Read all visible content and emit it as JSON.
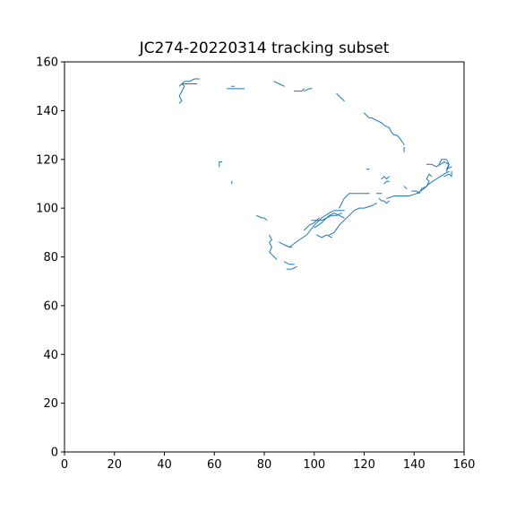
{
  "chart_data": {
    "type": "line",
    "title": "JC274-20220314 tracking subset",
    "xlabel": "",
    "ylabel": "",
    "xlim": [
      0,
      160
    ],
    "ylim": [
      0,
      160
    ],
    "xticks": [
      0,
      20,
      40,
      60,
      80,
      100,
      120,
      140,
      160
    ],
    "yticks": [
      0,
      20,
      40,
      60,
      80,
      100,
      120,
      140,
      160
    ],
    "grid": false,
    "colors": {
      "series": "#1f77b4"
    },
    "series": [
      {
        "x": [
          46,
          47,
          46,
          47,
          48,
          47,
          48,
          50,
          52,
          54
        ],
        "y": [
          143,
          144,
          146,
          148,
          150,
          151,
          152,
          152,
          153,
          153
        ]
      },
      {
        "x": [
          46,
          47,
          49,
          51,
          53
        ],
        "y": [
          150,
          151,
          151,
          151,
          151
        ]
      },
      {
        "x": [
          65,
          67,
          69,
          72
        ],
        "y": [
          149,
          149,
          149,
          149
        ]
      },
      {
        "x": [
          67,
          68
        ],
        "y": [
          150,
          150
        ]
      },
      {
        "x": [
          84,
          86,
          88
        ],
        "y": [
          152,
          151,
          150
        ]
      },
      {
        "x": [
          92,
          95,
          96
        ],
        "y": [
          148,
          148,
          149
        ]
      },
      {
        "x": [
          96,
          98,
          99
        ],
        "y": [
          148,
          149,
          149
        ]
      },
      {
        "x": [
          109,
          110,
          111,
          112
        ],
        "y": [
          147,
          146,
          145,
          144
        ]
      },
      {
        "x": [
          120,
          122,
          123,
          125,
          127,
          128,
          130,
          131,
          132,
          133,
          134,
          136
        ],
        "y": [
          139,
          137,
          137,
          136,
          135,
          134,
          133,
          131,
          130,
          130,
          129,
          126
        ]
      },
      {
        "x": [
          136,
          136
        ],
        "y": [
          125,
          123
        ]
      },
      {
        "x": [
          62,
          62,
          63
        ],
        "y": [
          117,
          119,
          119
        ]
      },
      {
        "x": [
          67,
          67
        ],
        "y": [
          111,
          110
        ]
      },
      {
        "x": [
          77,
          79,
          80,
          81
        ],
        "y": [
          97,
          96,
          96,
          95
        ]
      },
      {
        "x": [
          82,
          83,
          82,
          83,
          82,
          83,
          84,
          85
        ],
        "y": [
          89,
          87,
          86,
          84,
          82,
          81,
          80,
          79
        ]
      },
      {
        "x": [
          88,
          90,
          91
        ],
        "y": [
          85,
          84,
          84
        ]
      },
      {
        "x": [
          88,
          90,
          92
        ],
        "y": [
          78,
          77,
          77
        ]
      },
      {
        "x": [
          89,
          91,
          93
        ],
        "y": [
          75,
          75,
          76
        ]
      },
      {
        "x": [
          96,
          98,
          100,
          102
        ],
        "y": [
          91,
          93,
          94,
          96
        ]
      },
      {
        "x": [
          100,
          103,
          106,
          108,
          110,
          112
        ],
        "y": [
          92,
          94,
          97,
          98,
          97,
          96
        ]
      },
      {
        "x": [
          101,
          103,
          105,
          107
        ],
        "y": [
          89,
          88,
          89,
          88
        ]
      },
      {
        "x": [
          106,
          108,
          110,
          112,
          114,
          116,
          118,
          120,
          123,
          125
        ],
        "y": [
          89,
          90,
          93,
          95,
          97,
          99,
          100,
          100,
          101,
          102
        ]
      },
      {
        "x": [
          110,
          111,
          112,
          113,
          114
        ],
        "y": [
          100,
          102,
          104,
          105,
          106
        ]
      },
      {
        "x": [
          114,
          117,
          120,
          122
        ],
        "y": [
          106,
          106,
          106,
          106
        ]
      },
      {
        "x": [
          121,
          122
        ],
        "y": [
          116,
          116
        ]
      },
      {
        "x": [
          126,
          127,
          128,
          129,
          130
        ],
        "y": [
          104,
          103,
          103,
          102,
          103
        ]
      },
      {
        "x": [
          127,
          128,
          129,
          130
        ],
        "y": [
          112,
          113,
          112,
          113
        ]
      },
      {
        "x": [
          128,
          129,
          130
        ],
        "y": [
          110,
          111,
          111
        ]
      },
      {
        "x": [
          125,
          127
        ],
        "y": [
          106,
          106
        ]
      },
      {
        "x": [
          129,
          132,
          135,
          138,
          141,
          144,
          146,
          149,
          152,
          154
        ],
        "y": [
          104,
          105,
          105,
          105,
          106,
          108,
          110,
          112,
          114,
          115
        ]
      },
      {
        "x": [
          136,
          137
        ],
        "y": [
          109,
          108
        ]
      },
      {
        "x": [
          139,
          141,
          142,
          143,
          145,
          146,
          145,
          146,
          147
        ],
        "y": [
          107,
          107,
          106,
          108,
          109,
          111,
          112,
          114,
          113
        ]
      },
      {
        "x": [
          145,
          147,
          149,
          152,
          154,
          153,
          155
        ],
        "y": [
          118,
          118,
          117,
          119,
          118,
          116,
          117
        ]
      },
      {
        "x": [
          150,
          151,
          153,
          154,
          153
        ],
        "y": [
          118,
          120,
          120,
          118,
          115
        ]
      },
      {
        "x": [
          152,
          154,
          155,
          155
        ],
        "y": [
          113,
          114,
          113,
          115
        ]
      },
      {
        "x": [
          86,
          88,
          90,
          94,
          97,
          100,
          103,
          106,
          108,
          110,
          112
        ],
        "y": [
          86,
          85,
          84,
          87,
          89,
          93,
          96,
          98,
          99,
          99,
          99
        ]
      },
      {
        "x": [
          99,
          101,
          103,
          105,
          107,
          109,
          111
        ],
        "y": [
          95,
          95,
          95,
          96,
          97,
          97,
          98
        ]
      }
    ]
  }
}
